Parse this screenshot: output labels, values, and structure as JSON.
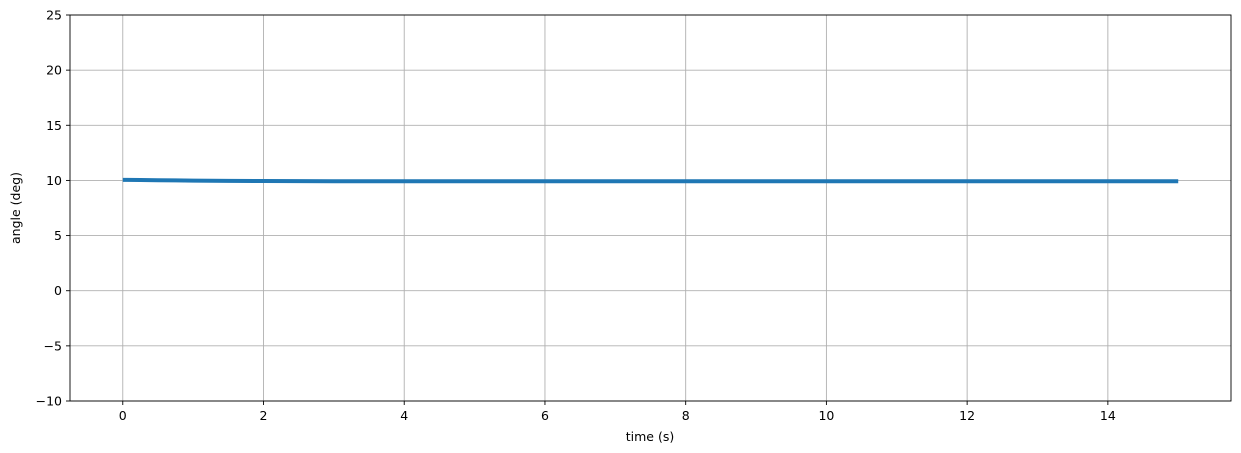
{
  "chart_data": {
    "type": "line",
    "title": "",
    "xlabel": "time (s)",
    "ylabel": "angle (deg)",
    "xlim": [
      -0.75,
      15.75
    ],
    "ylim": [
      -10,
      25
    ],
    "xticks": [
      0,
      2,
      4,
      6,
      8,
      10,
      12,
      14
    ],
    "yticks": [
      -10,
      -5,
      0,
      5,
      10,
      15,
      20,
      25
    ],
    "xtick_labels": [
      "0",
      "2",
      "4",
      "6",
      "8",
      "10",
      "12",
      "14"
    ],
    "ytick_labels": [
      "−10",
      "−5",
      "0",
      "5",
      "10",
      "15",
      "20",
      "25"
    ],
    "grid": true,
    "legend": false,
    "series": [
      {
        "color": "#1f77b4",
        "x": [
          0,
          0.25,
          0.5,
          0.75,
          1,
          1.5,
          2,
          2.5,
          3,
          4,
          5,
          6,
          7,
          8,
          9,
          10,
          11,
          12,
          13,
          14,
          15
        ],
        "y": [
          10.05,
          10.04,
          10.02,
          10.0,
          9.98,
          9.96,
          9.95,
          9.94,
          9.93,
          9.93,
          9.92,
          9.92,
          9.92,
          9.92,
          9.92,
          9.92,
          9.92,
          9.92,
          9.92,
          9.92,
          9.92
        ]
      }
    ]
  }
}
